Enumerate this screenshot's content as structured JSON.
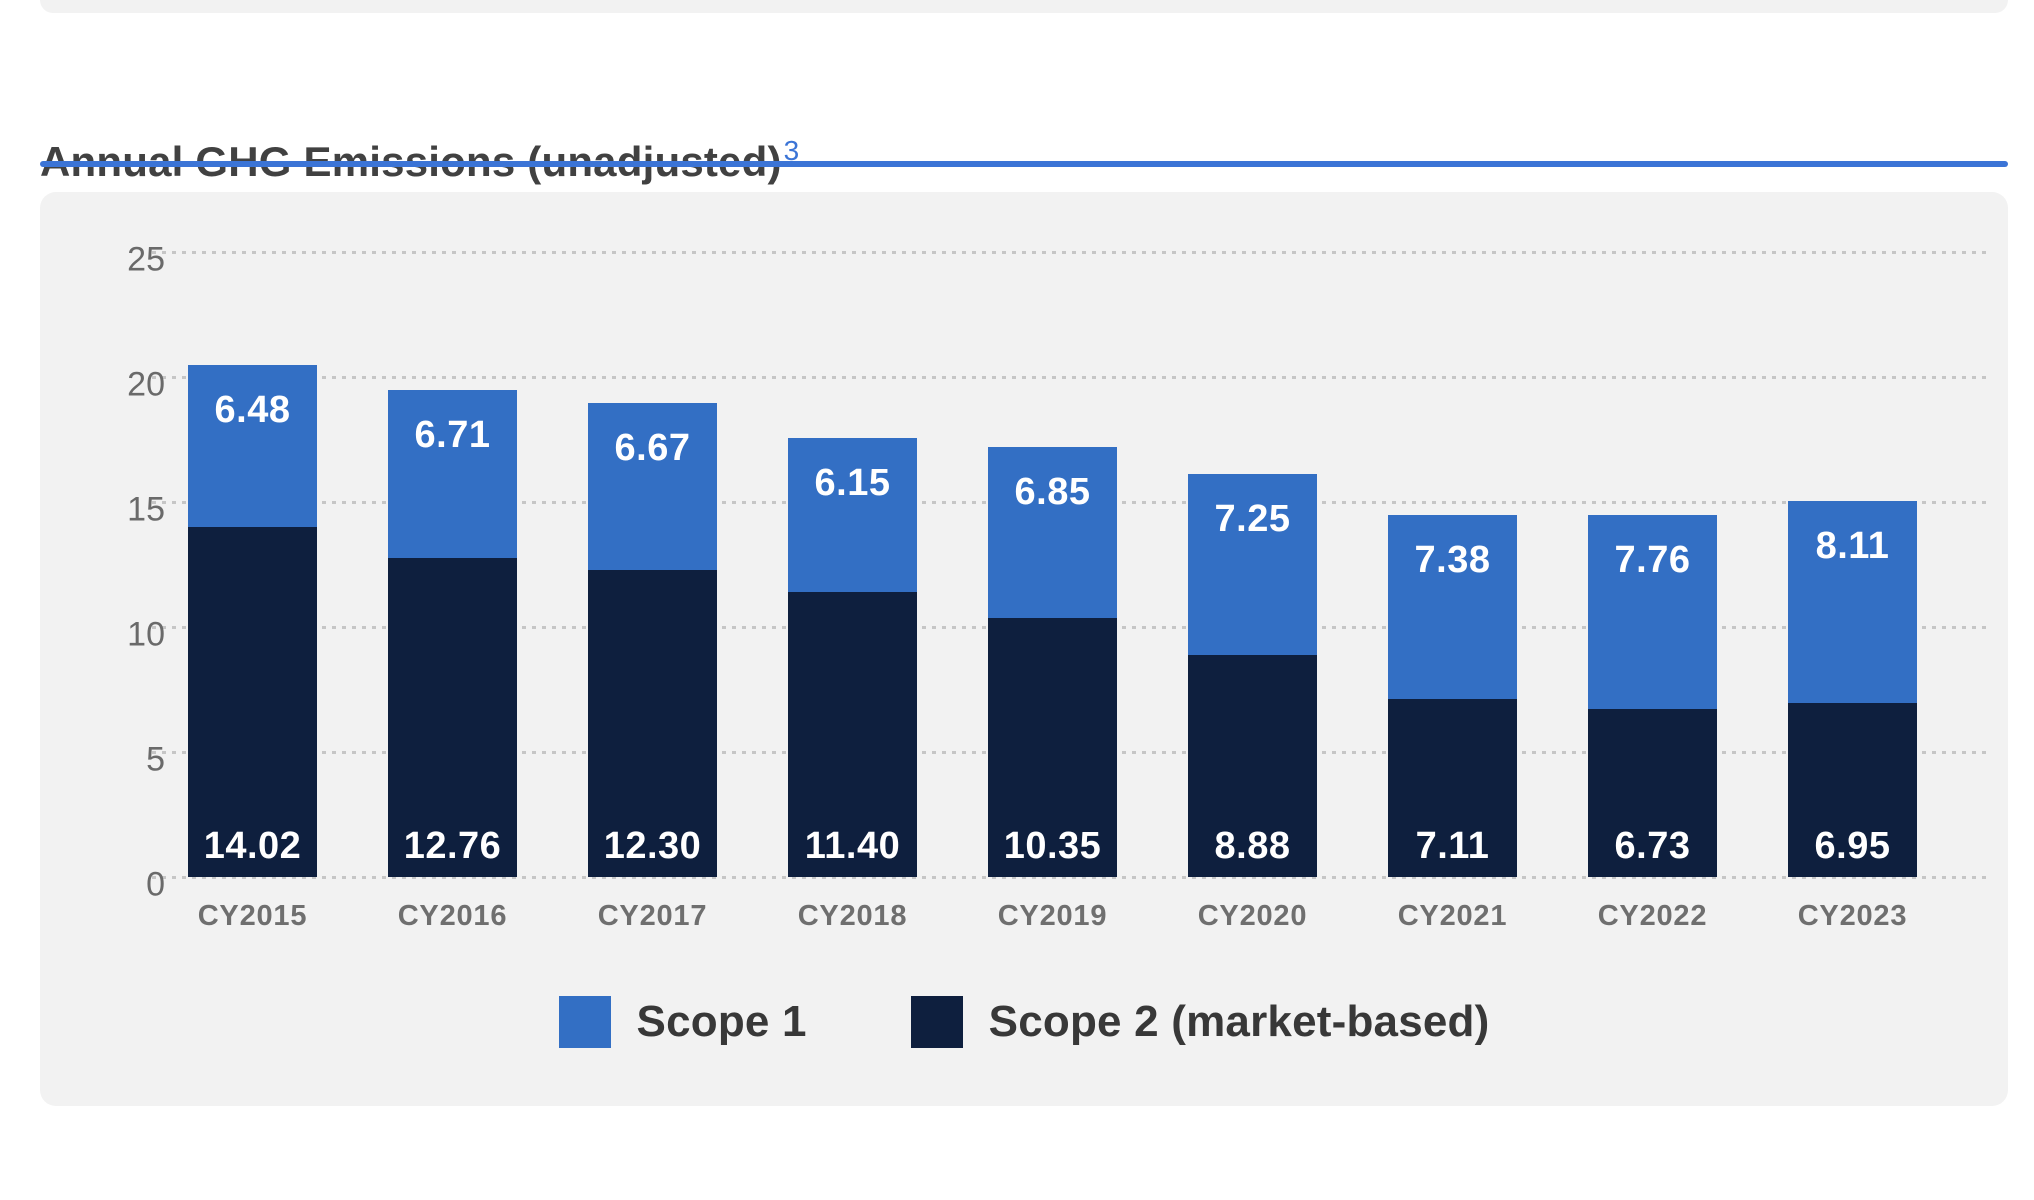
{
  "header": {
    "title": "Annual GHG Emissions (unadjusted)",
    "footnote_ref": "3",
    "accent_color": "#3b74d6"
  },
  "chart_data": {
    "type": "bar",
    "stacked": true,
    "title": "Annual GHG Emissions (unadjusted)",
    "categories": [
      "CY2015",
      "CY2016",
      "CY2017",
      "CY2018",
      "CY2019",
      "CY2020",
      "CY2021",
      "CY2022",
      "CY2023"
    ],
    "series": [
      {
        "name": "Scope 1",
        "color": "#336fc4",
        "stack_position": "top",
        "values": [
          6.48,
          6.71,
          6.67,
          6.15,
          6.85,
          7.25,
          7.38,
          7.76,
          8.11
        ]
      },
      {
        "name": "Scope 2 (market-based)",
        "color": "#0e1f3e",
        "stack_position": "bottom",
        "values": [
          14.02,
          12.76,
          12.3,
          11.4,
          10.35,
          8.88,
          7.11,
          6.73,
          6.95
        ]
      }
    ],
    "xlabel": "",
    "ylabel": "",
    "ylim": [
      0,
      25
    ],
    "yticks": [
      0,
      5,
      10,
      15,
      20,
      25
    ],
    "grid": "horizontal-dotted",
    "legend_position": "bottom",
    "value_labels": "inside-white",
    "panel_background": "#f2f2f2"
  }
}
